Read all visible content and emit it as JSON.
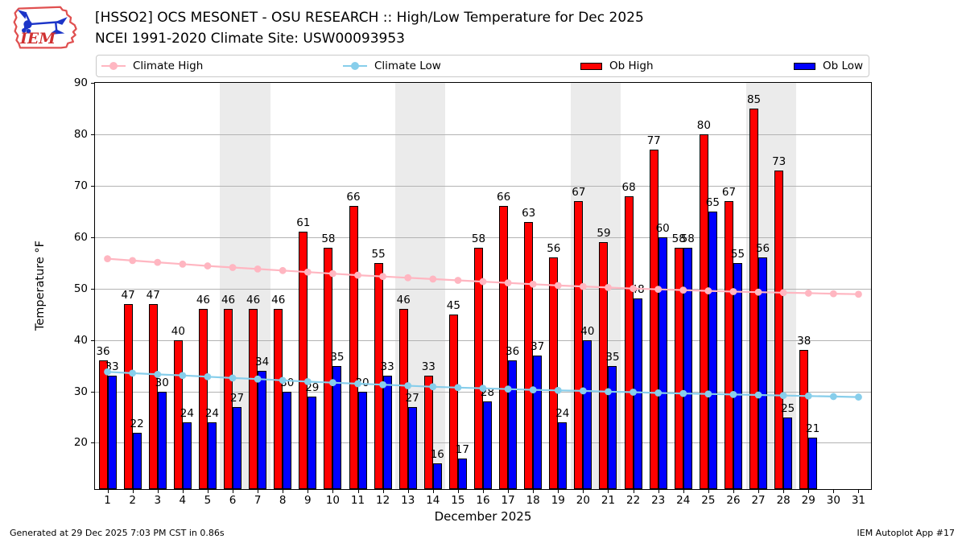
{
  "header": {
    "title": "[HSSO2] OCS MESONET - OSU RESEARCH :: High/Low Temperature for Dec 2025",
    "subtitle": "NCEI 1991-2020 Climate Site: USW00093953",
    "logo_text": "IEM"
  },
  "legend": {
    "items": [
      {
        "label": "Climate High",
        "type": "line",
        "color": "#ffb6c1"
      },
      {
        "label": "Climate Low",
        "type": "line",
        "color": "#87ceeb"
      },
      {
        "label": "Ob High",
        "type": "patch",
        "color": "#ff0000"
      },
      {
        "label": "Ob Low",
        "type": "patch",
        "color": "#0000ff"
      }
    ]
  },
  "chart_data": {
    "type": "bar",
    "title": "[HSSO2] OCS MESONET - OSU RESEARCH :: High/Low Temperature for Dec 2025",
    "xlabel": "December 2025",
    "ylabel": "Temperature °F",
    "x": [
      1,
      2,
      3,
      4,
      5,
      6,
      7,
      8,
      9,
      10,
      11,
      12,
      13,
      14,
      15,
      16,
      17,
      18,
      19,
      20,
      21,
      22,
      23,
      24,
      25,
      26,
      27,
      28,
      29,
      30,
      31
    ],
    "ylim": [
      11,
      90
    ],
    "yticks": [
      20,
      30,
      40,
      50,
      60,
      70,
      80,
      90
    ],
    "grid": "horizontal",
    "legend_position": "top",
    "weekend_bands": [
      [
        5.5,
        7.5
      ],
      [
        12.5,
        14.5
      ],
      [
        19.5,
        21.5
      ],
      [
        26.5,
        28.5
      ]
    ],
    "band_color": "#ebebeb",
    "series": [
      {
        "name": "Ob High",
        "type": "bar",
        "color": "#ff0000",
        "values": [
          36,
          47,
          47,
          40,
          46,
          46,
          46,
          46,
          61,
          58,
          66,
          55,
          46,
          33,
          45,
          58,
          66,
          63,
          56,
          67,
          59,
          68,
          77,
          58,
          80,
          67,
          85,
          73,
          38
        ]
      },
      {
        "name": "Ob Low",
        "type": "bar",
        "color": "#0000ff",
        "values": [
          33,
          22,
          30,
          24,
          24,
          27,
          34,
          30,
          29,
          35,
          30,
          33,
          27,
          16,
          17,
          28,
          36,
          37,
          24,
          40,
          35,
          48,
          60,
          58,
          65,
          55,
          56,
          25,
          21
        ]
      },
      {
        "name": "Climate High",
        "type": "line",
        "color": "#ffb6c1",
        "values": [
          55.8,
          55.45,
          55.1,
          54.75,
          54.4,
          54.1,
          53.8,
          53.5,
          53.2,
          52.9,
          52.6,
          52.35,
          52.1,
          51.85,
          51.6,
          51.35,
          51.1,
          50.85,
          50.6,
          50.4,
          50.2,
          50.0,
          49.85,
          49.7,
          49.55,
          49.4,
          49.3,
          49.2,
          49.1,
          49.0,
          48.9
        ]
      },
      {
        "name": "Climate Low",
        "type": "line",
        "color": "#87ceeb",
        "values": [
          33.8,
          33.55,
          33.3,
          33.1,
          32.85,
          32.6,
          32.4,
          32.15,
          31.9,
          31.7,
          31.5,
          31.3,
          31.1,
          30.9,
          30.75,
          30.6,
          30.45,
          30.3,
          30.2,
          30.1,
          29.95,
          29.85,
          29.7,
          29.6,
          29.5,
          29.4,
          29.3,
          29.2,
          29.1,
          29.0,
          28.9
        ]
      }
    ]
  },
  "footer": {
    "left": "Generated at 29 Dec 2025 7:03 PM CST in 0.86s",
    "right": "IEM Autoplot App #17"
  }
}
